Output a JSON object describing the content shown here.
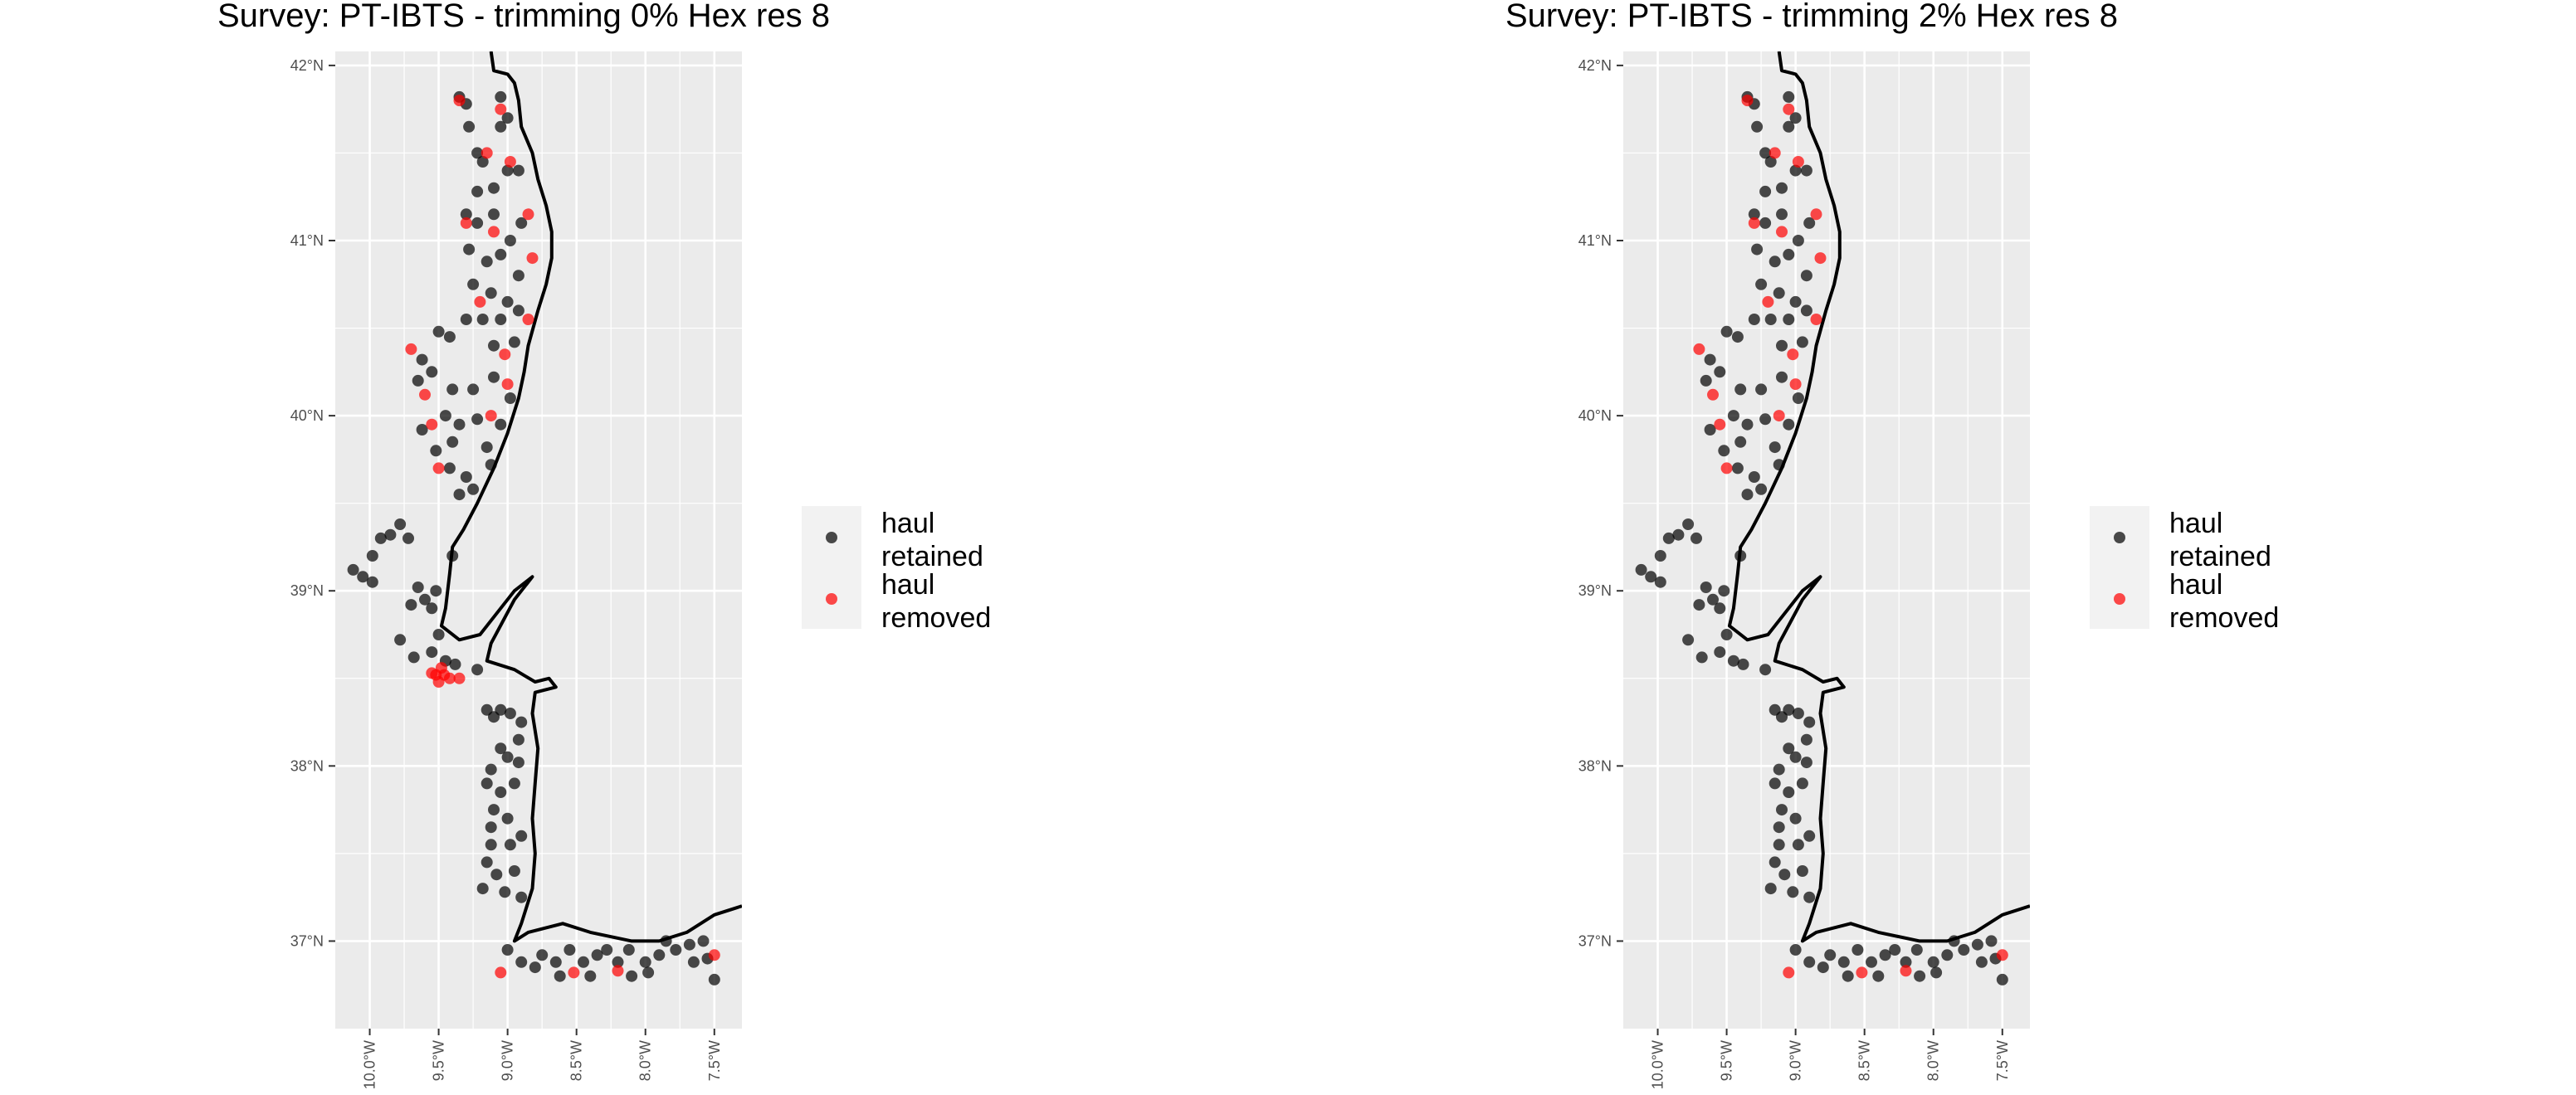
{
  "colors": {
    "panel_bg": "#ebebeb",
    "grid": "#ffffff",
    "coast": "#000000",
    "retained": "#000000",
    "removed": "#ff0000",
    "legend_bg": "#f2f2f2"
  },
  "legend": {
    "items": [
      {
        "label_line1": "haul",
        "label_line2": "retained",
        "color": "#000000"
      },
      {
        "label_line1": "haul",
        "label_line2": "removed",
        "color": "#ff0000"
      }
    ]
  },
  "axes": {
    "x": {
      "range": [
        -10.25,
        -7.3
      ],
      "ticks": [
        -10.0,
        -9.5,
        -9.0,
        -8.5,
        -8.0,
        -7.5
      ],
      "tick_labels": [
        "10.0°W",
        "9.5°W",
        "9.0°W",
        "8.5°W",
        "8.0°W",
        "7.5°W"
      ]
    },
    "y": {
      "range": [
        36.5,
        42.08
      ],
      "ticks": [
        37,
        38,
        39,
        40,
        41,
        42
      ],
      "tick_labels": [
        "37°N",
        "38°N",
        "39°N",
        "40°N",
        "41°N",
        "42°N"
      ]
    }
  },
  "coastline": [
    [
      -9.12,
      42.08
    ],
    [
      -9.1,
      41.97
    ],
    [
      -9.0,
      41.95
    ],
    [
      -8.95,
      41.9
    ],
    [
      -8.92,
      41.8
    ],
    [
      -8.9,
      41.65
    ],
    [
      -8.82,
      41.5
    ],
    [
      -8.78,
      41.35
    ],
    [
      -8.72,
      41.2
    ],
    [
      -8.68,
      41.05
    ],
    [
      -8.68,
      40.9
    ],
    [
      -8.72,
      40.75
    ],
    [
      -8.78,
      40.6
    ],
    [
      -8.85,
      40.4
    ],
    [
      -8.88,
      40.25
    ],
    [
      -8.92,
      40.1
    ],
    [
      -9.0,
      39.9
    ],
    [
      -9.1,
      39.7
    ],
    [
      -9.22,
      39.5
    ],
    [
      -9.32,
      39.35
    ],
    [
      -9.4,
      39.25
    ],
    [
      -9.42,
      39.1
    ],
    [
      -9.45,
      38.9
    ],
    [
      -9.48,
      38.8
    ],
    [
      -9.35,
      38.72
    ],
    [
      -9.2,
      38.75
    ],
    [
      -9.05,
      38.9
    ],
    [
      -8.95,
      39.0
    ],
    [
      -8.82,
      39.08
    ],
    [
      -8.95,
      38.95
    ],
    [
      -9.12,
      38.7
    ],
    [
      -9.15,
      38.6
    ],
    [
      -8.95,
      38.55
    ],
    [
      -8.8,
      38.48
    ],
    [
      -8.7,
      38.5
    ],
    [
      -8.65,
      38.45
    ],
    [
      -8.8,
      38.42
    ],
    [
      -8.82,
      38.3
    ],
    [
      -8.78,
      38.1
    ],
    [
      -8.8,
      37.9
    ],
    [
      -8.82,
      37.7
    ],
    [
      -8.8,
      37.5
    ],
    [
      -8.82,
      37.3
    ],
    [
      -8.9,
      37.1
    ],
    [
      -8.95,
      37.0
    ],
    [
      -8.85,
      37.05
    ],
    [
      -8.6,
      37.1
    ],
    [
      -8.4,
      37.05
    ],
    [
      -8.1,
      37.0
    ],
    [
      -7.9,
      37.0
    ],
    [
      -7.7,
      37.05
    ],
    [
      -7.5,
      37.15
    ],
    [
      -7.3,
      37.2
    ]
  ],
  "panels": [
    {
      "title": "Survey: PT-IBTS - trimming 0% Hex res 8",
      "removed": [
        [
          -9.35,
          41.8
        ],
        [
          -9.05,
          41.75
        ],
        [
          -9.15,
          41.5
        ],
        [
          -8.98,
          41.45
        ],
        [
          -8.85,
          41.15
        ],
        [
          -9.3,
          41.1
        ],
        [
          -9.1,
          41.05
        ],
        [
          -8.82,
          40.9
        ],
        [
          -9.2,
          40.65
        ],
        [
          -8.85,
          40.55
        ],
        [
          -9.02,
          40.35
        ],
        [
          -9.7,
          40.38
        ],
        [
          -9.6,
          40.12
        ],
        [
          -9.0,
          40.18
        ],
        [
          -9.12,
          40.0
        ],
        [
          -9.55,
          39.95
        ],
        [
          -9.5,
          39.7
        ],
        [
          -9.52,
          38.52
        ],
        [
          -9.5,
          38.48
        ],
        [
          -9.46,
          38.52
        ],
        [
          -9.42,
          38.5
        ],
        [
          -9.35,
          38.5
        ],
        [
          -9.48,
          38.56
        ],
        [
          -9.55,
          38.53
        ],
        [
          -9.05,
          36.82
        ],
        [
          -8.52,
          36.82
        ],
        [
          -8.2,
          36.83
        ],
        [
          -7.5,
          36.92
        ]
      ]
    },
    {
      "title": "Survey: PT-IBTS - trimming 2% Hex res 8",
      "removed": [
        [
          -9.35,
          41.8
        ],
        [
          -9.05,
          41.75
        ],
        [
          -9.15,
          41.5
        ],
        [
          -8.98,
          41.45
        ],
        [
          -8.85,
          41.15
        ],
        [
          -9.3,
          41.1
        ],
        [
          -9.1,
          41.05
        ],
        [
          -8.82,
          40.9
        ],
        [
          -9.2,
          40.65
        ],
        [
          -8.85,
          40.55
        ],
        [
          -9.02,
          40.35
        ],
        [
          -9.7,
          40.38
        ],
        [
          -9.6,
          40.12
        ],
        [
          -9.0,
          40.18
        ],
        [
          -9.12,
          40.0
        ],
        [
          -9.55,
          39.95
        ],
        [
          -9.5,
          39.7
        ],
        [
          -9.05,
          36.82
        ],
        [
          -8.52,
          36.82
        ],
        [
          -8.2,
          36.83
        ],
        [
          -7.5,
          36.92
        ]
      ]
    }
  ],
  "retained_points": [
    [
      -9.35,
      41.82
    ],
    [
      -9.3,
      41.78
    ],
    [
      -9.05,
      41.82
    ],
    [
      -9.0,
      41.7
    ],
    [
      -9.05,
      41.65
    ],
    [
      -9.28,
      41.65
    ],
    [
      -9.22,
      41.5
    ],
    [
      -9.18,
      41.45
    ],
    [
      -9.0,
      41.4
    ],
    [
      -8.92,
      41.4
    ],
    [
      -9.1,
      41.3
    ],
    [
      -9.22,
      41.28
    ],
    [
      -9.3,
      41.15
    ],
    [
      -9.22,
      41.1
    ],
    [
      -9.1,
      41.15
    ],
    [
      -8.9,
      41.1
    ],
    [
      -8.98,
      41.0
    ],
    [
      -9.28,
      40.95
    ],
    [
      -9.15,
      40.88
    ],
    [
      -9.05,
      40.92
    ],
    [
      -8.92,
      40.8
    ],
    [
      -9.25,
      40.75
    ],
    [
      -9.12,
      40.7
    ],
    [
      -9.0,
      40.65
    ],
    [
      -9.18,
      40.55
    ],
    [
      -9.05,
      40.55
    ],
    [
      -8.92,
      40.6
    ],
    [
      -9.3,
      40.55
    ],
    [
      -9.5,
      40.48
    ],
    [
      -9.42,
      40.45
    ],
    [
      -9.1,
      40.4
    ],
    [
      -8.95,
      40.42
    ],
    [
      -9.62,
      40.32
    ],
    [
      -9.55,
      40.25
    ],
    [
      -9.65,
      40.2
    ],
    [
      -9.4,
      40.15
    ],
    [
      -9.25,
      40.15
    ],
    [
      -9.1,
      40.22
    ],
    [
      -8.98,
      40.1
    ],
    [
      -9.62,
      39.92
    ],
    [
      -9.45,
      40.0
    ],
    [
      -9.35,
      39.95
    ],
    [
      -9.22,
      39.98
    ],
    [
      -9.05,
      39.95
    ],
    [
      -9.15,
      39.82
    ],
    [
      -9.4,
      39.85
    ],
    [
      -9.52,
      39.8
    ],
    [
      -9.42,
      39.7
    ],
    [
      -9.3,
      39.65
    ],
    [
      -9.35,
      39.55
    ],
    [
      -9.25,
      39.58
    ],
    [
      -9.12,
      39.72
    ],
    [
      -10.12,
      39.12
    ],
    [
      -10.05,
      39.08
    ],
    [
      -9.98,
      39.2
    ],
    [
      -9.98,
      39.05
    ],
    [
      -9.92,
      39.3
    ],
    [
      -9.85,
      39.32
    ],
    [
      -9.78,
      39.38
    ],
    [
      -9.72,
      39.3
    ],
    [
      -9.65,
      39.02
    ],
    [
      -9.7,
      38.92
    ],
    [
      -9.6,
      38.95
    ],
    [
      -9.55,
      38.9
    ],
    [
      -9.52,
      39.0
    ],
    [
      -9.5,
      38.75
    ],
    [
      -9.55,
      38.65
    ],
    [
      -9.45,
      38.6
    ],
    [
      -9.38,
      38.58
    ],
    [
      -9.4,
      39.2
    ],
    [
      -9.78,
      38.72
    ],
    [
      -9.68,
      38.62
    ],
    [
      -9.22,
      38.55
    ],
    [
      -9.15,
      38.32
    ],
    [
      -9.1,
      38.28
    ],
    [
      -9.05,
      38.32
    ],
    [
      -8.98,
      38.3
    ],
    [
      -8.9,
      38.25
    ],
    [
      -8.92,
      38.15
    ],
    [
      -9.05,
      38.1
    ],
    [
      -9.0,
      38.05
    ],
    [
      -8.92,
      38.02
    ],
    [
      -9.12,
      37.98
    ],
    [
      -9.15,
      37.9
    ],
    [
      -9.05,
      37.85
    ],
    [
      -8.95,
      37.9
    ],
    [
      -9.1,
      37.75
    ],
    [
      -9.12,
      37.65
    ],
    [
      -9.0,
      37.7
    ],
    [
      -8.9,
      37.6
    ],
    [
      -8.98,
      37.55
    ],
    [
      -9.12,
      37.55
    ],
    [
      -9.15,
      37.45
    ],
    [
      -9.08,
      37.38
    ],
    [
      -8.95,
      37.4
    ],
    [
      -9.02,
      37.28
    ],
    [
      -9.18,
      37.3
    ],
    [
      -8.9,
      37.25
    ],
    [
      -9.0,
      36.95
    ],
    [
      -8.9,
      36.88
    ],
    [
      -8.8,
      36.85
    ],
    [
      -8.75,
      36.92
    ],
    [
      -8.65,
      36.88
    ],
    [
      -8.55,
      36.95
    ],
    [
      -8.45,
      36.88
    ],
    [
      -8.35,
      36.92
    ],
    [
      -8.2,
      36.88
    ],
    [
      -8.12,
      36.95
    ],
    [
      -8.0,
      36.88
    ],
    [
      -7.9,
      36.92
    ],
    [
      -7.78,
      36.95
    ],
    [
      -7.68,
      36.98
    ],
    [
      -7.58,
      37.0
    ],
    [
      -7.55,
      36.9
    ],
    [
      -7.5,
      36.78
    ],
    [
      -8.28,
      36.95
    ],
    [
      -8.62,
      36.8
    ],
    [
      -8.4,
      36.8
    ],
    [
      -7.98,
      36.82
    ],
    [
      -8.1,
      36.8
    ],
    [
      -7.85,
      37.0
    ],
    [
      -7.65,
      36.88
    ]
  ]
}
